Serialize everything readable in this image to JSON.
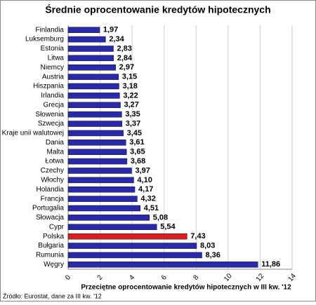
{
  "chart_data": {
    "type": "hbar",
    "title": "Średnie oprocentowanie kredytów hipotecznych",
    "x_label": "Przeciętne oprocentowanie kredytów hipotecznych w III kw. '12",
    "note": "Źródło: Eurostat, dane za III kw. '12",
    "categories": [
      "Finlandia",
      "Luksemburg",
      "Estonia",
      "Litwa",
      "Niemcy",
      "Austria",
      "Hiszpania",
      "Irlandia",
      "Grecja",
      "Słowenia",
      "Szwecja",
      "Kraje unii walutowej",
      "Dania",
      "Malta",
      "Łotwa",
      "Czechy",
      "Włochy",
      "Holandia",
      "Francja",
      "Portugalia",
      "Słowacja",
      "Cypr",
      "Polska",
      "Bułgaria",
      "Rumunia",
      "Węgry"
    ],
    "values": [
      1.97,
      2.34,
      2.83,
      2.84,
      2.97,
      3.15,
      3.18,
      3.22,
      3.27,
      3.35,
      3.37,
      3.45,
      3.61,
      3.65,
      3.68,
      3.97,
      4.1,
      4.17,
      4.32,
      4.51,
      5.08,
      5.54,
      7.43,
      8.03,
      8.36,
      11.86
    ],
    "value_labels": [
      "1,97",
      "2,34",
      "2,83",
      "2,84",
      "2,97",
      "3,15",
      "3,18",
      "3,22",
      "3,27",
      "3,35",
      "3,37",
      "3,45",
      "3,61",
      "3,65",
      "3,68",
      "3,97",
      "4,10",
      "4,17",
      "4,32",
      "4,51",
      "5,08",
      "5,54",
      "7,43",
      "8,03",
      "8,36",
      "11,86"
    ],
    "colors": [
      "#2a2aa8",
      "#2a2aa8",
      "#2a2aa8",
      "#2a2aa8",
      "#2a2aa8",
      "#2a2aa8",
      "#2a2aa8",
      "#2a2aa8",
      "#2a2aa8",
      "#2a2aa8",
      "#2a2aa8",
      "#2a2aa8",
      "#2a2aa8",
      "#2a2aa8",
      "#2a2aa8",
      "#2a2aa8",
      "#2a2aa8",
      "#2a2aa8",
      "#2a2aa8",
      "#2a2aa8",
      "#2a2aa8",
      "#2a2aa8",
      "#d42020",
      "#2a2aa8",
      "#2a2aa8",
      "#2a2aa8"
    ],
    "xlim": [
      0,
      14
    ],
    "xticks": [
      0,
      2,
      4,
      6,
      8,
      10,
      12,
      14
    ],
    "grid": true
  }
}
